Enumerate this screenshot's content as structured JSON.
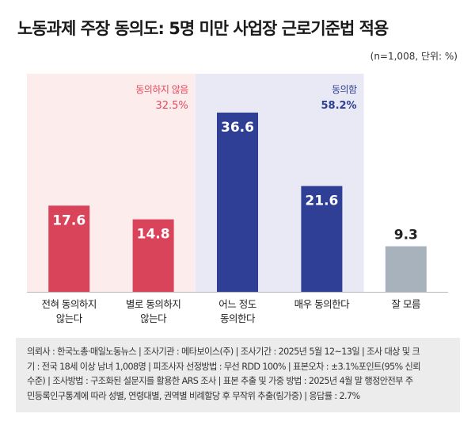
{
  "header": {
    "title": "노동과제 주장 동의도: 5명 미만 사업장 근로기준법 적용",
    "unit_note": "(n=1,008, 단위: %)"
  },
  "chart_data": {
    "type": "bar",
    "title": "노동과제 주장 동의도: 5명 미만 사업장 근로기준법 적용",
    "categories": [
      [
        "전혀 동의하지",
        "않는다"
      ],
      [
        "별로 동의하지",
        "않는다"
      ],
      [
        "어느 정도",
        "동의한다"
      ],
      [
        "매우 동의한다"
      ],
      [
        "잘 모름"
      ]
    ],
    "values": [
      17.6,
      14.8,
      36.6,
      21.6,
      9.3
    ],
    "ylim": [
      0,
      42
    ],
    "bar_colors": [
      "#d9445a",
      "#d9445a",
      "#2e3f95",
      "#2e3f95",
      "#a7b2bd"
    ],
    "label_colors": [
      "#ffffff",
      "#ffffff",
      "#ffffff",
      "#ffffff",
      "#222222"
    ],
    "groups": [
      {
        "label": "동의하지 않음",
        "total": "32.5%",
        "color": "#e34b5d",
        "background": "#fcecec",
        "range": [
          0,
          1
        ]
      },
      {
        "label": "동의함",
        "total": "58.2%",
        "color": "#2e3f95",
        "background": "#e8e9f5",
        "range": [
          2,
          3
        ]
      }
    ],
    "grid": false
  },
  "footnote": {
    "lines": [
      "의뢰사 : 한국노총·매일노동뉴스 | 조사기관 : 메타보이스(주) | 조사기간 : 2025년 5월 12~13일 | 조사 대상 및 크",
      "기 : 전국 18세 이상 남녀 1,008명 | 피조사자 선정방법 : 무선 RDD 100% | 표본오차 : ±3.1%포인트(95% 신뢰",
      "수준) | 조사방법 : 구조화된 설문지를 활용한 ARS 조사 | 표본 추출 및 가중 방법 : 2025년 4월 말 행정안전부 주",
      "민등록인구통계에 따라 성별, 연령대별, 권역별 비례할당 후 무작위 추출(림가중) | 응답률 : 2.7%"
    ]
  }
}
